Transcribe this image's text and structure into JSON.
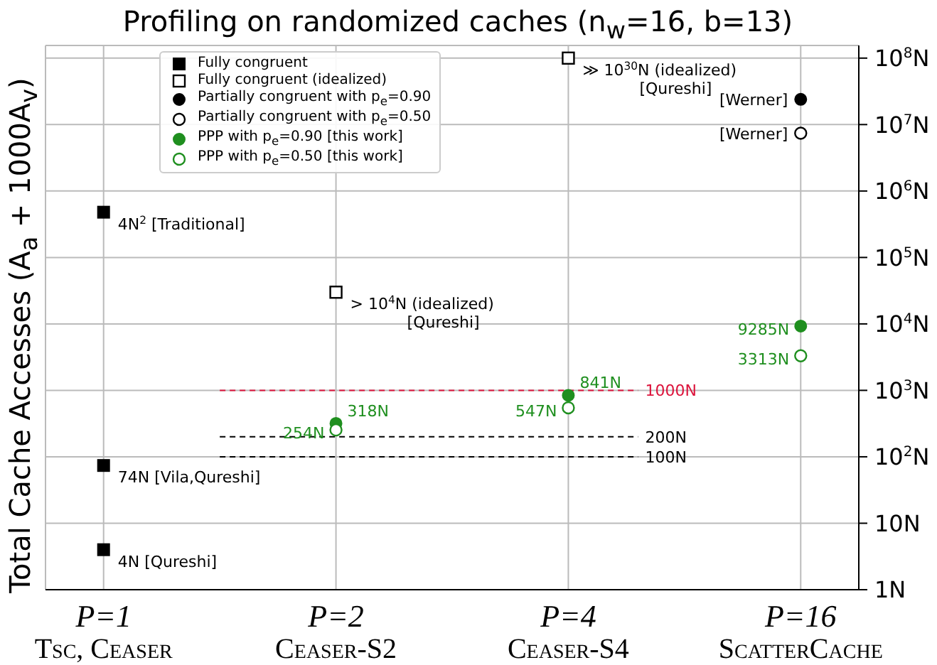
{
  "chart_data": {
    "type": "scatter",
    "title": "Profiling on randomized caches (n$_{w}$=16, b=13)",
    "ylabel": "Total Cache Accesses (A$_{a}$ + 1000A$_{v}$)",
    "categories": [
      "P=1\nTsc, Ceaser",
      "P=2\nCeaser-S2",
      "P=4\nCeaser-S4",
      "P=16\nScatterCache"
    ],
    "log": true,
    "grid": true,
    "legend": "top left",
    "ylim": [
      1,
      155000000
    ],
    "yticks": [
      {
        "value": 1,
        "label": "1N"
      },
      {
        "value": 10,
        "label": "10N"
      },
      {
        "value": 100,
        "label": "10$^{2}$N"
      },
      {
        "value": 1000,
        "label": "10$^{3}$N"
      },
      {
        "value": 10000,
        "label": "10$^{4}$N"
      },
      {
        "value": 100000,
        "label": "10$^{5}$N"
      },
      {
        "value": 1000000,
        "label": "10$^{6}$N"
      },
      {
        "value": 10000000,
        "label": "10$^{7}$N"
      },
      {
        "value": 100000000,
        "label": "10$^{8}$N"
      }
    ],
    "series": [
      {
        "name": "Fully congruent",
        "color": "#000000",
        "marker": "square",
        "x": [
          "P=1\nTsc, Ceaser",
          "P=1\nTsc, Ceaser",
          "P=1\nTsc, Ceaser"
        ],
        "values": [
          480000,
          74,
          4
        ]
      },
      {
        "name": "Fully congruent (idealized)",
        "color": "#000000",
        "marker": "square-open",
        "x": [
          "P=2\nCeaser-S2",
          "P=4\nCeaser-S4"
        ],
        "values": [
          30000,
          100000000
        ]
      },
      {
        "name": "Partially congruent with p$_{e}$=0.90",
        "color": "#000000",
        "marker": "circle",
        "x": [
          "P=16\nScatterCache"
        ],
        "values": [
          24000000
        ]
      },
      {
        "name": "Partially congruent with p$_{e}$=0.50",
        "color": "#000000",
        "marker": "circle-open",
        "x": [
          "P=16\nScatterCache"
        ],
        "values": [
          7400000
        ]
      },
      {
        "name": "PPP with p$_{e}$=0.90 [this work]",
        "color": "#1f8f1f",
        "marker": "circle",
        "x": [
          "P=2\nCeaser-S2",
          "P=4\nCeaser-S4",
          "P=16\nScatterCache"
        ],
        "values": [
          318,
          841,
          9285
        ],
        "value_labels": [
          "318N",
          "841N",
          "9285N"
        ]
      },
      {
        "name": "PPP with p$_{e}$=0.50 [this work]",
        "color": "#1f8f1f",
        "marker": "circle-open",
        "x": [
          "P=2\nCeaser-S2",
          "P=4\nCeaser-S4",
          "P=16\nScatterCache"
        ],
        "values": [
          254,
          547,
          3313
        ],
        "value_labels": [
          "254N",
          "547N",
          "3313N"
        ]
      }
    ],
    "ref_lines": [
      {
        "axis": "y",
        "value": 1000,
        "label": "1000N",
        "color": "#dc143c",
        "line_style": "dashed"
      },
      {
        "axis": "y",
        "value": 200,
        "label": "200N",
        "color": "#000000",
        "line_style": "dashed"
      },
      {
        "axis": "y",
        "value": 100,
        "label": "100N",
        "color": "#000000",
        "line_style": "dashed"
      }
    ],
    "annotations": [
      {
        "text": "4N$^{2}$ [Traditional]",
        "x": "P=1\nTsc, Ceaser",
        "y": 480000
      },
      {
        "text": "74N [Vila,Qureshi]",
        "x": "P=1\nTsc, Ceaser",
        "y": 74
      },
      {
        "text": "4N [Qureshi]",
        "x": "P=1\nTsc, Ceaser",
        "y": 4
      },
      {
        "text": "> 10$^{4}$N (idealized)\n[Qureshi]",
        "x": "P=2\nCeaser-S2",
        "y": 30000
      },
      {
        "text": "≫ 10$^{30}$N (idealized)\n[Qureshi]",
        "x": "P=4\nCeaser-S4",
        "y": 100000000
      },
      {
        "text": "[Werner]",
        "x": "P=16\nScatterCache",
        "y": 24000000
      },
      {
        "text": "[Werner]",
        "x": "P=16\nScatterCache",
        "y": 7400000
      }
    ]
  }
}
